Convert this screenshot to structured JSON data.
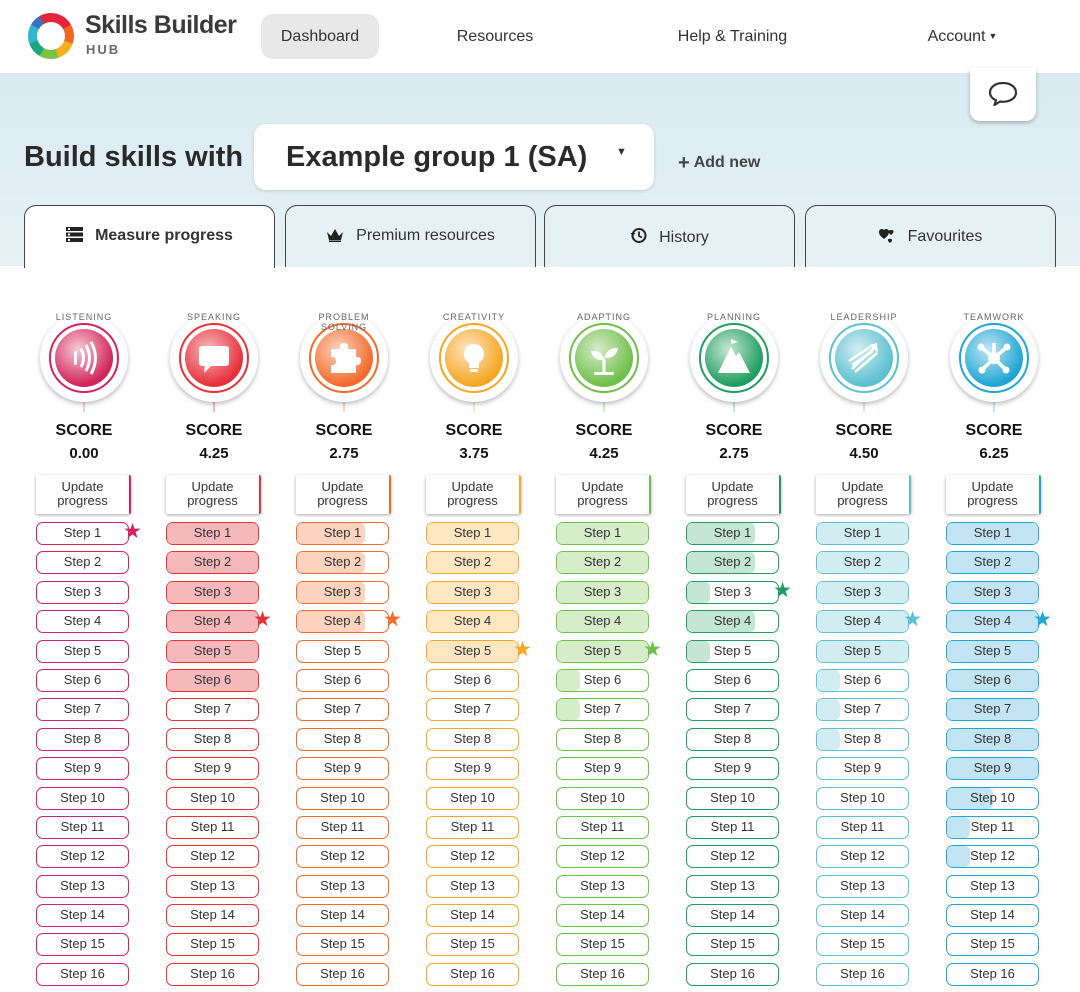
{
  "nav": {
    "brand": "Skills Builder",
    "brand_sub": "HUB",
    "dashboard": "Dashboard",
    "resources": "Resources",
    "help": "Help & Training",
    "account": "Account"
  },
  "header": {
    "title": "Build skills with",
    "group": "Example group 1 (SA)",
    "add_new": "Add new"
  },
  "tabs": [
    {
      "label": "Measure progress",
      "icon": "list-icon"
    },
    {
      "label": "Premium resources",
      "icon": "crown-icon"
    },
    {
      "label": "History",
      "icon": "history-icon"
    },
    {
      "label": "Favourites",
      "icon": "hearts-icon"
    }
  ],
  "score_label": "SCORE",
  "update_label": "Update progress",
  "step_prefix": "Step",
  "skills": [
    {
      "name": "LISTENING",
      "score": "0.00",
      "color": "#d2235a",
      "light": "#f6ccd9",
      "fill": [
        0,
        0,
        0,
        0,
        0,
        0,
        0,
        0,
        0,
        0,
        0,
        0,
        0,
        0,
        0,
        0
      ],
      "star": 1,
      "icon": "sound-waves-icon"
    },
    {
      "name": "SPEAKING",
      "score": "4.25",
      "color": "#e8303a",
      "light": "#f5b8bb",
      "fill": [
        1,
        1,
        1,
        1,
        1,
        1,
        0,
        0,
        0,
        0,
        0,
        0,
        0,
        0,
        0,
        0
      ],
      "star": 4,
      "icon": "speech-bubble-icon"
    },
    {
      "name": "PROBLEM SOLVING",
      "score": "2.75",
      "color": "#f36b2b",
      "light": "#fbd3bf",
      "fill": [
        0.75,
        0.75,
        0.75,
        0.75,
        0,
        0,
        0,
        0,
        0,
        0,
        0,
        0,
        0,
        0,
        0,
        0
      ],
      "star": 4,
      "icon": "puzzle-icon"
    },
    {
      "name": "CREATIVITY",
      "score": "3.75",
      "color": "#f5a623",
      "light": "#fde6c2",
      "fill": [
        1,
        1,
        1,
        1,
        1,
        0,
        0,
        0,
        0,
        0,
        0,
        0,
        0,
        0,
        0,
        0
      ],
      "star": 5,
      "icon": "lightbulb-icon"
    },
    {
      "name": "ADAPTING",
      "score": "4.25",
      "color": "#6fbf4a",
      "light": "#d7ecc9",
      "fill": [
        1,
        1,
        1,
        1,
        1,
        0.25,
        0.25,
        0,
        0,
        0,
        0,
        0,
        0,
        0,
        0,
        0
      ],
      "star": 5,
      "icon": "seedling-icon"
    },
    {
      "name": "PLANNING",
      "score": "2.75",
      "color": "#1f9e5f",
      "light": "#c4e6d3",
      "fill": [
        0.75,
        0.75,
        0.25,
        0.75,
        0.25,
        0,
        0,
        0,
        0,
        0,
        0,
        0,
        0,
        0,
        0,
        0
      ],
      "star": 3,
      "icon": "mountain-icon"
    },
    {
      "name": "LEADERSHIP",
      "score": "4.50",
      "color": "#5bc0d0",
      "light": "#d2edf1",
      "fill": [
        1,
        1,
        1,
        1,
        1,
        0.25,
        0.25,
        0.25,
        0,
        0,
        0,
        0,
        0,
        0,
        0,
        0
      ],
      "star": 4,
      "icon": "arrows-icon"
    },
    {
      "name": "TEAMWORK",
      "score": "6.25",
      "color": "#1ea6d4",
      "light": "#c3e5f3",
      "fill": [
        1,
        1,
        1,
        1,
        1,
        1,
        1,
        1,
        1,
        0.5,
        0.25,
        0.25,
        0,
        0,
        0,
        0
      ],
      "star": 4,
      "icon": "network-icon"
    }
  ]
}
